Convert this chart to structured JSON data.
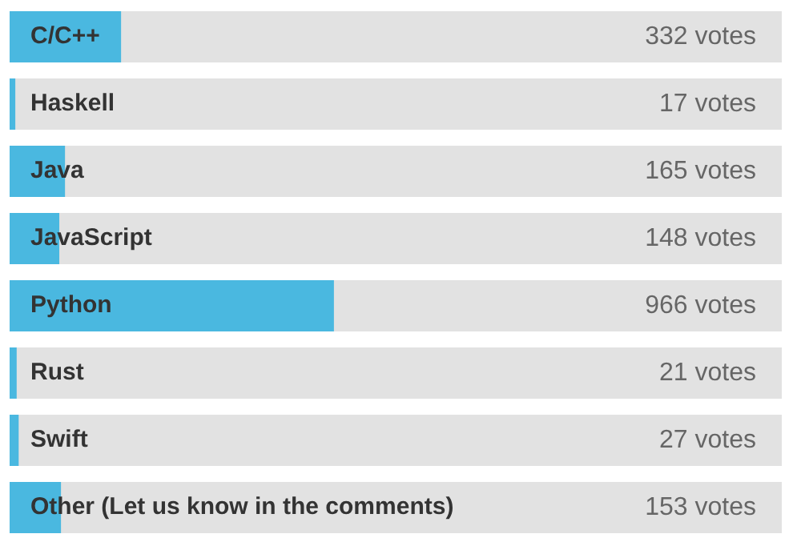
{
  "chart_data": {
    "type": "bar",
    "orientation": "horizontal",
    "categories": [
      "C/C++",
      "Haskell",
      "Java",
      "JavaScript",
      "Python",
      "Rust",
      "Swift",
      "Other (Let us know in the comments)"
    ],
    "values": [
      332,
      17,
      165,
      148,
      966,
      21,
      27,
      153
    ],
    "value_labels": [
      "332 votes",
      "17 votes",
      "165 votes",
      "148 votes",
      "966 votes",
      "21 votes",
      "27 votes",
      "153 votes"
    ],
    "color": "#4ab8e0",
    "xlim": [
      0,
      2300
    ],
    "tick_labels": "y",
    "legend": false
  }
}
